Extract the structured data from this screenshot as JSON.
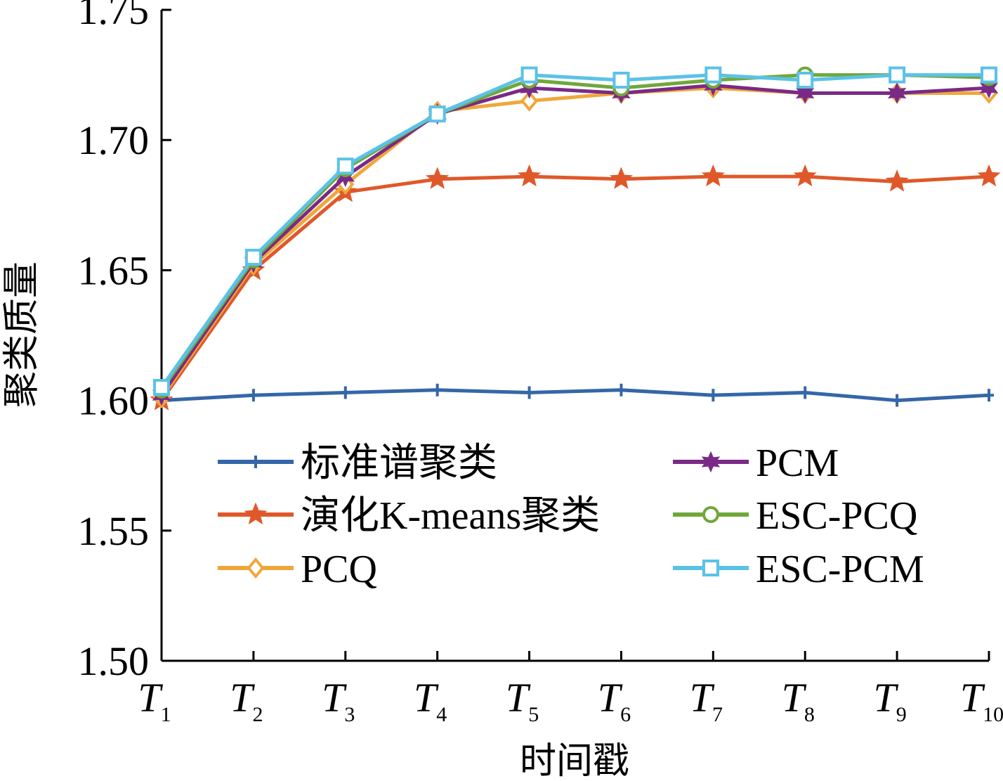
{
  "chart_data": {
    "type": "line",
    "title": "",
    "xlabel": "时间戳",
    "ylabel": "聚类质量",
    "ylim": [
      1.5,
      1.75
    ],
    "yticks": [
      "1.50",
      "1.55",
      "1.60",
      "1.65",
      "1.70",
      "1.75"
    ],
    "categories": [
      {
        "base": "T",
        "sub": "1"
      },
      {
        "base": "T",
        "sub": "2"
      },
      {
        "base": "T",
        "sub": "3"
      },
      {
        "base": "T",
        "sub": "4"
      },
      {
        "base": "T",
        "sub": "5"
      },
      {
        "base": "T",
        "sub": "6"
      },
      {
        "base": "T",
        "sub": "7"
      },
      {
        "base": "T",
        "sub": "8"
      },
      {
        "base": "T",
        "sub": "9"
      },
      {
        "base": "T",
        "sub": "10"
      }
    ],
    "grid": false,
    "legend_position": "lower-center",
    "series": [
      {
        "name": "标准谱聚类",
        "color": "#3566a8",
        "marker": "plus",
        "values": [
          1.6,
          1.602,
          1.603,
          1.604,
          1.603,
          1.604,
          1.602,
          1.603,
          1.6,
          1.602
        ]
      },
      {
        "name": "演化K-means聚类",
        "color": "#e0582a",
        "marker": "star",
        "values": [
          1.6,
          1.65,
          1.68,
          1.685,
          1.686,
          1.685,
          1.686,
          1.686,
          1.684,
          1.686
        ]
      },
      {
        "name": "PCQ",
        "color": "#f0a73a",
        "marker": "diamond",
        "values": [
          1.601,
          1.652,
          1.683,
          1.711,
          1.715,
          1.718,
          1.72,
          1.718,
          1.718,
          1.718
        ]
      },
      {
        "name": "PCM",
        "color": "#7a2a86",
        "marker": "star6",
        "values": [
          1.602,
          1.653,
          1.686,
          1.71,
          1.72,
          1.718,
          1.721,
          1.718,
          1.718,
          1.72
        ]
      },
      {
        "name": "ESC-PCQ",
        "color": "#6fa83a",
        "marker": "circle",
        "values": [
          1.604,
          1.654,
          1.689,
          1.71,
          1.723,
          1.72,
          1.723,
          1.725,
          1.725,
          1.724
        ]
      },
      {
        "name": "ESC-PCM",
        "color": "#5bc2e7",
        "marker": "square",
        "values": [
          1.605,
          1.655,
          1.69,
          1.71,
          1.725,
          1.723,
          1.725,
          1.723,
          1.725,
          1.725
        ]
      }
    ]
  }
}
